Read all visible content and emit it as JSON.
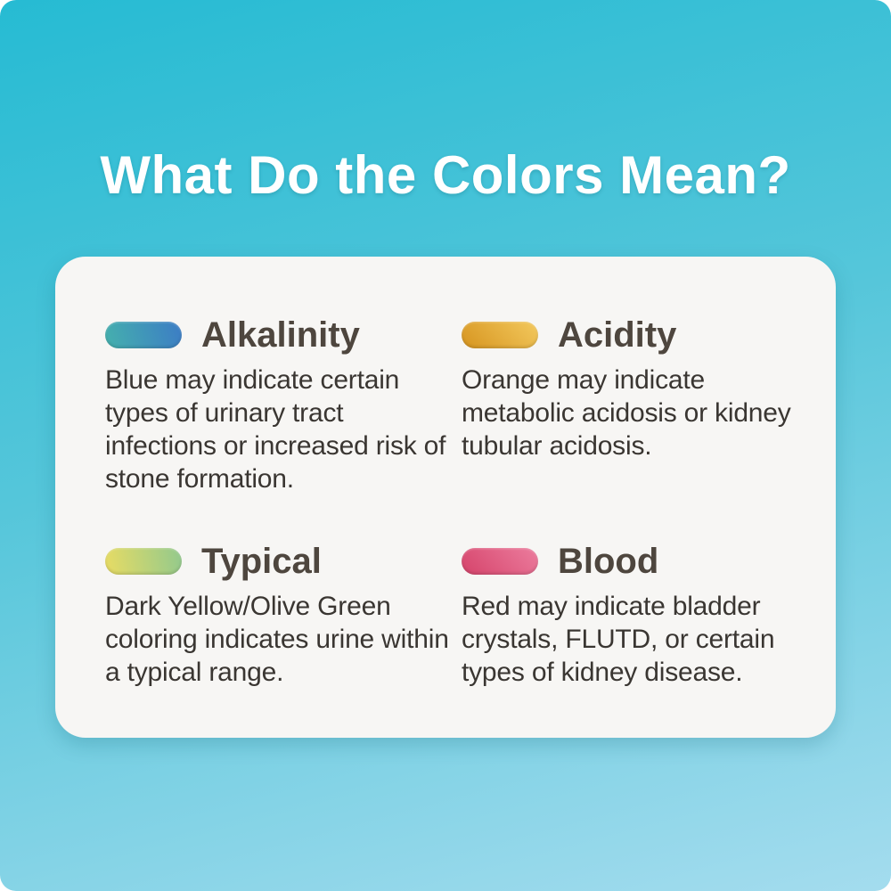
{
  "title": "What Do the Colors Mean?",
  "sections": [
    {
      "label": "Alkalinity",
      "color_name": "blue",
      "gradient": {
        "from": "#45b1ad",
        "to": "#3c7cc5",
        "angle": "75deg"
      },
      "description": "Blue may indicate certain types of urinary tract infections or increased risk of stone formation."
    },
    {
      "label": "Acidity",
      "color_name": "orange",
      "gradient": {
        "from": "#d6941f",
        "to": "#f3c95e",
        "angle": "45deg"
      },
      "description": "Orange may indicate metabolic acidosis or kidney tubular acidosis."
    },
    {
      "label": "Typical",
      "color_name": "dark-yellow-olive-green",
      "gradient": {
        "from": "#e9dc63",
        "to": "#92c98d",
        "angle": "80deg"
      },
      "description": "Dark Yellow/Olive Green coloring indicates urine within a typical range."
    },
    {
      "label": "Blood",
      "color_name": "red",
      "gradient": {
        "from": "#d5436a",
        "to": "#ec7d9e",
        "angle": "45deg"
      },
      "description": "Red may indicate bladder crystals, FLUTD, or certain types of kidney disease."
    }
  ],
  "theme": {
    "background_top": "#26bbd3",
    "background_mid": "#55c6da",
    "background_bottom": "#a4dcee",
    "card_background": "#f7f6f4",
    "title_color": "#ffffff",
    "heading_color": "#4e463e",
    "body_color": "#3a3632"
  }
}
